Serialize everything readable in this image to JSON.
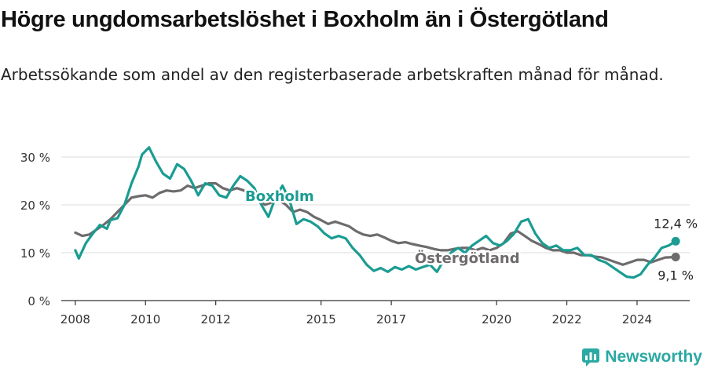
{
  "title": "Högre ungdomsarbetslöshet i Boxholm än i Östergötland",
  "subtitle": "Arbetssökande som andel av den registerbaserade arbetskraften månad för månad.",
  "brand": "Newsworthy",
  "colors": {
    "boxholm": "#1a9c92",
    "ostergotland": "#6e6b6d",
    "grid": "#dddddd",
    "axis": "#333333",
    "brand": "#2ba9a3"
  },
  "chart_data": {
    "type": "line",
    "xlim": [
      2007.6,
      2025.5
    ],
    "ylim": [
      0,
      30
    ],
    "yticks": [
      0,
      10,
      20,
      30
    ],
    "ytick_labels": [
      "0 %",
      "10 %",
      "20 %",
      "30 %"
    ],
    "xticks": [
      2008,
      2010,
      2012,
      2015,
      2017,
      2020,
      2022,
      2024
    ],
    "xtick_labels": [
      "2008",
      "2010",
      "2012",
      "2015",
      "2017",
      "2020",
      "2022",
      "2024"
    ],
    "series": [
      {
        "name": "Boxholm",
        "end_label": "12,4 %",
        "points": [
          [
            2008.0,
            10.5
          ],
          [
            2008.1,
            8.8
          ],
          [
            2008.3,
            12.0
          ],
          [
            2008.5,
            14.0
          ],
          [
            2008.7,
            15.8
          ],
          [
            2008.9,
            15.0
          ],
          [
            2009.0,
            16.8
          ],
          [
            2009.2,
            17.2
          ],
          [
            2009.4,
            20.0
          ],
          [
            2009.6,
            24.5
          ],
          [
            2009.8,
            28.0
          ],
          [
            2009.9,
            30.5
          ],
          [
            2010.1,
            32.0
          ],
          [
            2010.3,
            29.0
          ],
          [
            2010.5,
            26.5
          ],
          [
            2010.7,
            25.5
          ],
          [
            2010.9,
            28.5
          ],
          [
            2011.1,
            27.5
          ],
          [
            2011.3,
            25.0
          ],
          [
            2011.5,
            22.0
          ],
          [
            2011.7,
            24.5
          ],
          [
            2011.9,
            24.0
          ],
          [
            2012.1,
            22.0
          ],
          [
            2012.3,
            21.5
          ],
          [
            2012.5,
            24.0
          ],
          [
            2012.7,
            26.0
          ],
          [
            2012.9,
            25.0
          ],
          [
            2013.1,
            23.5
          ],
          [
            2013.3,
            20.0
          ],
          [
            2013.5,
            17.5
          ],
          [
            2013.7,
            21.5
          ],
          [
            2013.9,
            24.0
          ],
          [
            2014.1,
            21.0
          ],
          [
            2014.3,
            16.0
          ],
          [
            2014.5,
            17.0
          ],
          [
            2014.7,
            16.5
          ],
          [
            2014.9,
            15.5
          ],
          [
            2015.1,
            14.0
          ],
          [
            2015.3,
            13.0
          ],
          [
            2015.5,
            13.5
          ],
          [
            2015.7,
            13.0
          ],
          [
            2015.9,
            11.0
          ],
          [
            2016.1,
            9.5
          ],
          [
            2016.3,
            7.5
          ],
          [
            2016.5,
            6.2
          ],
          [
            2016.7,
            6.8
          ],
          [
            2016.9,
            6.0
          ],
          [
            2017.1,
            7.0
          ],
          [
            2017.3,
            6.5
          ],
          [
            2017.5,
            7.2
          ],
          [
            2017.7,
            6.5
          ],
          [
            2017.9,
            7.0
          ],
          [
            2018.1,
            7.5
          ],
          [
            2018.3,
            6.0
          ],
          [
            2018.5,
            8.5
          ],
          [
            2018.7,
            10.0
          ],
          [
            2018.9,
            11.0
          ],
          [
            2019.1,
            10.0
          ],
          [
            2019.3,
            11.5
          ],
          [
            2019.5,
            12.5
          ],
          [
            2019.7,
            13.5
          ],
          [
            2019.9,
            12.0
          ],
          [
            2020.1,
            11.5
          ],
          [
            2020.3,
            12.5
          ],
          [
            2020.5,
            14.0
          ],
          [
            2020.7,
            16.5
          ],
          [
            2020.9,
            17.0
          ],
          [
            2021.1,
            14.0
          ],
          [
            2021.3,
            12.0
          ],
          [
            2021.5,
            11.0
          ],
          [
            2021.7,
            11.5
          ],
          [
            2021.9,
            10.5
          ],
          [
            2022.1,
            10.5
          ],
          [
            2022.3,
            11.0
          ],
          [
            2022.5,
            9.5
          ],
          [
            2022.7,
            9.5
          ],
          [
            2022.9,
            8.5
          ],
          [
            2023.1,
            8.0
          ],
          [
            2023.3,
            7.0
          ],
          [
            2023.5,
            6.0
          ],
          [
            2023.7,
            5.0
          ],
          [
            2023.9,
            4.8
          ],
          [
            2024.1,
            5.5
          ],
          [
            2024.3,
            7.5
          ],
          [
            2024.5,
            9.0
          ],
          [
            2024.7,
            11.0
          ],
          [
            2024.9,
            11.5
          ],
          [
            2025.1,
            12.4
          ]
        ]
      },
      {
        "name": "Östergötland",
        "end_label": "9,1 %",
        "points": [
          [
            2008.0,
            14.2
          ],
          [
            2008.2,
            13.5
          ],
          [
            2008.4,
            13.8
          ],
          [
            2008.6,
            14.8
          ],
          [
            2008.8,
            15.8
          ],
          [
            2009.0,
            17.0
          ],
          [
            2009.2,
            18.5
          ],
          [
            2009.4,
            20.0
          ],
          [
            2009.6,
            21.5
          ],
          [
            2009.8,
            21.8
          ],
          [
            2010.0,
            22.0
          ],
          [
            2010.2,
            21.5
          ],
          [
            2010.4,
            22.5
          ],
          [
            2010.6,
            23.0
          ],
          [
            2010.8,
            22.8
          ],
          [
            2011.0,
            23.0
          ],
          [
            2011.2,
            24.0
          ],
          [
            2011.4,
            23.5
          ],
          [
            2011.6,
            24.0
          ],
          [
            2011.8,
            24.5
          ],
          [
            2012.0,
            24.5
          ],
          [
            2012.2,
            23.5
          ],
          [
            2012.4,
            23.0
          ],
          [
            2012.6,
            23.5
          ],
          [
            2012.8,
            23.0
          ],
          [
            2013.0,
            22.0
          ],
          [
            2013.2,
            21.0
          ],
          [
            2013.4,
            20.0
          ],
          [
            2013.6,
            20.5
          ],
          [
            2013.8,
            21.0
          ],
          [
            2014.0,
            20.0
          ],
          [
            2014.2,
            18.5
          ],
          [
            2014.4,
            19.0
          ],
          [
            2014.6,
            18.5
          ],
          [
            2014.8,
            17.5
          ],
          [
            2015.0,
            16.8
          ],
          [
            2015.2,
            16.0
          ],
          [
            2015.4,
            16.5
          ],
          [
            2015.6,
            16.0
          ],
          [
            2015.8,
            15.5
          ],
          [
            2016.0,
            14.5
          ],
          [
            2016.2,
            13.8
          ],
          [
            2016.4,
            13.5
          ],
          [
            2016.6,
            13.8
          ],
          [
            2016.8,
            13.2
          ],
          [
            2017.0,
            12.5
          ],
          [
            2017.2,
            12.0
          ],
          [
            2017.4,
            12.2
          ],
          [
            2017.6,
            11.8
          ],
          [
            2017.8,
            11.5
          ],
          [
            2018.0,
            11.2
          ],
          [
            2018.2,
            10.8
          ],
          [
            2018.4,
            10.5
          ],
          [
            2018.6,
            10.5
          ],
          [
            2018.8,
            10.8
          ],
          [
            2019.0,
            11.0
          ],
          [
            2019.2,
            11.0
          ],
          [
            2019.4,
            10.5
          ],
          [
            2019.6,
            11.0
          ],
          [
            2019.8,
            10.5
          ],
          [
            2020.0,
            11.0
          ],
          [
            2020.2,
            12.0
          ],
          [
            2020.4,
            14.0
          ],
          [
            2020.6,
            14.5
          ],
          [
            2020.8,
            13.5
          ],
          [
            2021.0,
            12.5
          ],
          [
            2021.2,
            11.8
          ],
          [
            2021.4,
            11.0
          ],
          [
            2021.6,
            10.5
          ],
          [
            2021.8,
            10.5
          ],
          [
            2022.0,
            10.0
          ],
          [
            2022.2,
            10.0
          ],
          [
            2022.4,
            9.5
          ],
          [
            2022.6,
            9.5
          ],
          [
            2022.8,
            9.2
          ],
          [
            2023.0,
            9.0
          ],
          [
            2023.2,
            8.5
          ],
          [
            2023.4,
            8.0
          ],
          [
            2023.6,
            7.5
          ],
          [
            2023.8,
            8.0
          ],
          [
            2024.0,
            8.5
          ],
          [
            2024.2,
            8.5
          ],
          [
            2024.4,
            8.0
          ],
          [
            2024.6,
            8.5
          ],
          [
            2024.8,
            9.0
          ],
          [
            2025.1,
            9.1
          ]
        ]
      }
    ]
  }
}
